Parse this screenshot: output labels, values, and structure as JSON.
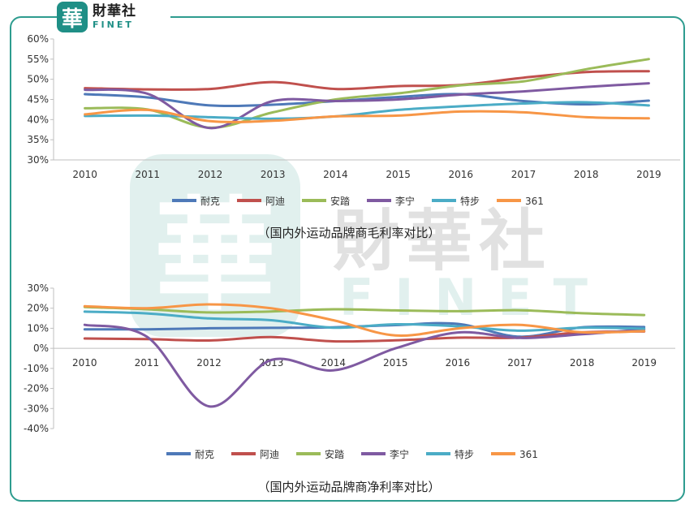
{
  "logo": {
    "cn": "財華社",
    "en": "FINET",
    "mark": "華"
  },
  "watermark": {
    "cn": "財華社",
    "en": "FINET",
    "mark": "華"
  },
  "chart_data": [
    {
      "type": "line",
      "caption": "（国内外运动品牌商毛利率对比）",
      "x": [
        "2010",
        "2011",
        "2012",
        "2013",
        "2014",
        "2015",
        "2016",
        "2017",
        "2018",
        "2019"
      ],
      "ylim": [
        30,
        60
      ],
      "yticks": [
        30,
        35,
        40,
        45,
        50,
        55,
        60
      ],
      "yunit": "%",
      "legend_position": "bottom",
      "series": [
        {
          "name": "耐克",
          "color": "#4e79b8",
          "values": [
            46.3,
            45.5,
            43.5,
            43.7,
            44.6,
            45.6,
            46.3,
            44.6,
            43.8,
            44.7
          ]
        },
        {
          "name": "阿迪",
          "color": "#c0504d",
          "values": [
            47.8,
            47.5,
            47.6,
            49.3,
            47.6,
            48.3,
            48.6,
            50.4,
            51.8,
            52.0
          ]
        },
        {
          "name": "安踏",
          "color": "#9bbb59",
          "values": [
            42.8,
            42.5,
            38.0,
            41.8,
            45.0,
            46.5,
            48.5,
            49.5,
            52.5,
            55.0
          ]
        },
        {
          "name": "李宁",
          "color": "#7f5aa1",
          "values": [
            47.4,
            46.4,
            37.9,
            44.6,
            44.6,
            45.0,
            46.2,
            47.0,
            48.1,
            49.0
          ]
        },
        {
          "name": "特步",
          "color": "#4bacc6",
          "values": [
            40.9,
            41.0,
            40.6,
            40.2,
            40.8,
            42.4,
            43.3,
            44.0,
            44.3,
            43.5
          ]
        },
        {
          "name": "361",
          "color": "#f79646",
          "values": [
            41.3,
            42.4,
            39.6,
            39.7,
            40.8,
            41.0,
            42.0,
            41.8,
            40.6,
            40.3
          ]
        }
      ]
    },
    {
      "type": "line",
      "caption": "（国内外运动品牌商净利率对比）",
      "x": [
        "2010",
        "2011",
        "2012",
        "2013",
        "2014",
        "2015",
        "2016",
        "2017",
        "2018",
        "2019"
      ],
      "ylim": [
        -40,
        30
      ],
      "yticks": [
        -40,
        -30,
        -20,
        -10,
        0,
        10,
        20,
        30
      ],
      "yunit": "%",
      "legend_position": "bottom",
      "series": [
        {
          "name": "耐克",
          "color": "#4e79b8",
          "values": [
            9.5,
            9.5,
            10.0,
            10.2,
            10.5,
            11.6,
            12.2,
            5.8,
            10.5,
            10.6
          ]
        },
        {
          "name": "阿迪",
          "color": "#c0504d",
          "values": [
            4.9,
            4.6,
            3.9,
            5.6,
            3.5,
            4.0,
            5.3,
            5.3,
            8.0,
            8.4
          ]
        },
        {
          "name": "安踏",
          "color": "#9bbb59",
          "values": [
            20.6,
            19.5,
            17.9,
            18.4,
            19.5,
            18.9,
            18.5,
            19.0,
            17.5,
            16.6
          ]
        },
        {
          "name": "李宁",
          "color": "#7f5aa1",
          "values": [
            11.7,
            5.8,
            -28.9,
            -5.8,
            -11.0,
            0.0,
            7.9,
            5.2,
            7.0,
            9.5
          ]
        },
        {
          "name": "特步",
          "color": "#4bacc6",
          "values": [
            18.3,
            17.4,
            14.9,
            14.0,
            10.3,
            12.0,
            11.0,
            8.8,
            10.3,
            9.8
          ]
        },
        {
          "name": "361",
          "color": "#f79646",
          "values": [
            21.0,
            20.0,
            21.9,
            20.0,
            14.0,
            6.4,
            9.9,
            11.7,
            8.0,
            8.6
          ]
        }
      ]
    }
  ]
}
